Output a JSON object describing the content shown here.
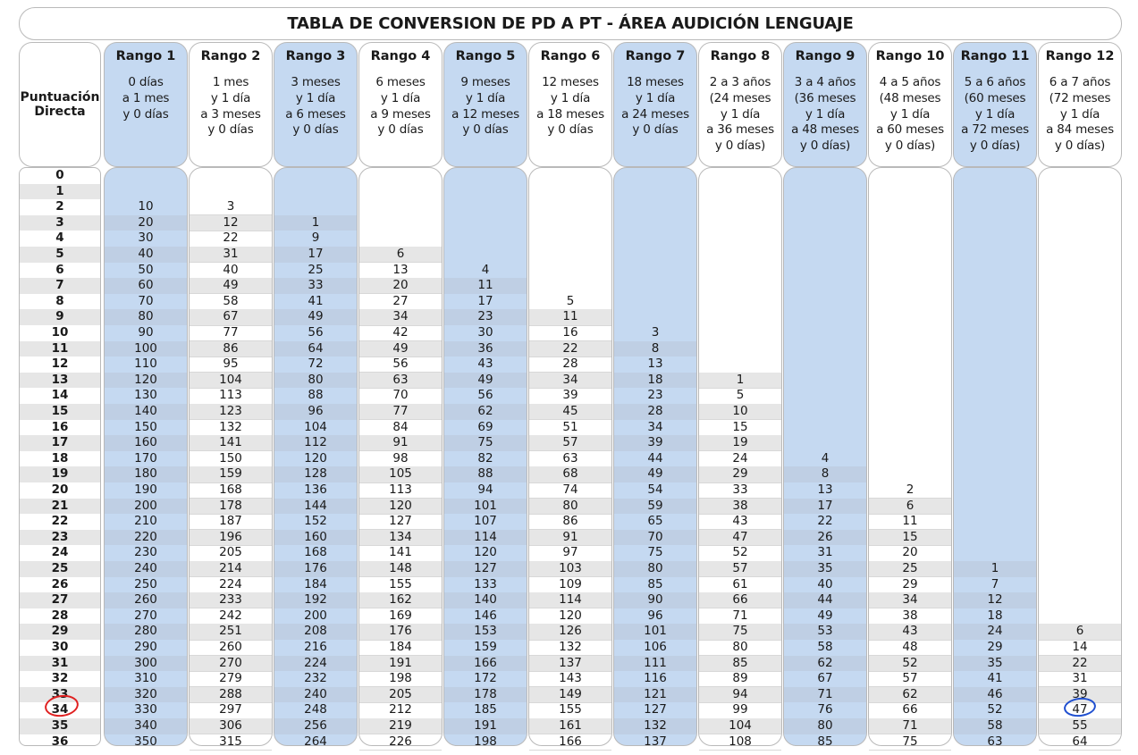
{
  "title": "TABLA DE CONVERSION DE PD A PT - ÁREA AUDICIÓN LENGUAJE",
  "pd_header": "Puntuación\nDirecta",
  "columns": [
    {
      "name": "Rango 1",
      "desc": "0 días\na 1 mes\ny 0 días",
      "blue": true
    },
    {
      "name": "Rango 2",
      "desc": "1 mes\ny 1 día\na 3 meses\ny 0 días",
      "blue": false
    },
    {
      "name": "Rango 3",
      "desc": "3 meses\ny 1 día\na 6 meses\ny 0 días",
      "blue": true
    },
    {
      "name": "Rango 4",
      "desc": "6 meses\ny 1 día\na 9 meses\ny 0 días",
      "blue": false
    },
    {
      "name": "Rango 5",
      "desc": "9 meses\ny 1 día\na 12 meses\ny 0 días",
      "blue": true
    },
    {
      "name": "Rango 6",
      "desc": "12 meses\ny 1 día\na 18 meses\ny 0 días",
      "blue": false
    },
    {
      "name": "Rango 7",
      "desc": "18 meses\ny 1 día\na 24 meses\ny 0 días",
      "blue": true
    },
    {
      "name": "Rango 8",
      "desc": "2 a 3 años\n(24 meses\ny 1 día\na 36 meses\ny 0 días)",
      "blue": false
    },
    {
      "name": "Rango 9",
      "desc": "3 a 4 años\n(36 meses\ny 1 día\na 48 meses\ny 0 días)",
      "blue": true
    },
    {
      "name": "Rango 10",
      "desc": "4 a 5 años\n(48 meses\ny 1 día\na 60 meses\ny 0 días)",
      "blue": false
    },
    {
      "name": "Rango 11",
      "desc": "5 a 6 años\n(60 meses\ny 1 día\na 72 meses\ny 0 días)",
      "blue": true
    },
    {
      "name": "Rango 12",
      "desc": "6 a 7 años\n(72 meses\ny 1 día\na 84 meses\ny 0 días)",
      "blue": false
    }
  ],
  "rows": [
    {
      "pd": "0",
      "values": [
        "",
        "",
        "",
        "",
        "",
        "",
        "",
        "",
        "",
        "",
        "",
        ""
      ]
    },
    {
      "pd": "1",
      "values": [
        "",
        "",
        "",
        "",
        "",
        "",
        "",
        "",
        "",
        "",
        "",
        ""
      ]
    },
    {
      "pd": "2",
      "values": [
        "10",
        "3",
        "",
        "",
        "",
        "",
        "",
        "",
        "",
        "",
        "",
        ""
      ]
    },
    {
      "pd": "3",
      "values": [
        "20",
        "12",
        "1",
        "",
        "",
        "",
        "",
        "",
        "",
        "",
        "",
        ""
      ]
    },
    {
      "pd": "4",
      "values": [
        "30",
        "22",
        "9",
        "",
        "",
        "",
        "",
        "",
        "",
        "",
        "",
        ""
      ]
    },
    {
      "pd": "5",
      "values": [
        "40",
        "31",
        "17",
        "6",
        "",
        "",
        "",
        "",
        "",
        "",
        "",
        ""
      ]
    },
    {
      "pd": "6",
      "values": [
        "50",
        "40",
        "25",
        "13",
        "4",
        "",
        "",
        "",
        "",
        "",
        "",
        ""
      ]
    },
    {
      "pd": "7",
      "values": [
        "60",
        "49",
        "33",
        "20",
        "11",
        "",
        "",
        "",
        "",
        "",
        "",
        ""
      ]
    },
    {
      "pd": "8",
      "values": [
        "70",
        "58",
        "41",
        "27",
        "17",
        "5",
        "",
        "",
        "",
        "",
        "",
        ""
      ]
    },
    {
      "pd": "9",
      "values": [
        "80",
        "67",
        "49",
        "34",
        "23",
        "11",
        "",
        "",
        "",
        "",
        "",
        ""
      ]
    },
    {
      "pd": "10",
      "values": [
        "90",
        "77",
        "56",
        "42",
        "30",
        "16",
        "3",
        "",
        "",
        "",
        "",
        ""
      ]
    },
    {
      "pd": "11",
      "values": [
        "100",
        "86",
        "64",
        "49",
        "36",
        "22",
        "8",
        "",
        "",
        "",
        "",
        ""
      ]
    },
    {
      "pd": "12",
      "values": [
        "110",
        "95",
        "72",
        "56",
        "43",
        "28",
        "13",
        "",
        "",
        "",
        "",
        ""
      ]
    },
    {
      "pd": "13",
      "values": [
        "120",
        "104",
        "80",
        "63",
        "49",
        "34",
        "18",
        "1",
        "",
        "",
        "",
        ""
      ]
    },
    {
      "pd": "14",
      "values": [
        "130",
        "113",
        "88",
        "70",
        "56",
        "39",
        "23",
        "5",
        "",
        "",
        "",
        ""
      ]
    },
    {
      "pd": "15",
      "values": [
        "140",
        "123",
        "96",
        "77",
        "62",
        "45",
        "28",
        "10",
        "",
        "",
        "",
        ""
      ]
    },
    {
      "pd": "16",
      "values": [
        "150",
        "132",
        "104",
        "84",
        "69",
        "51",
        "34",
        "15",
        "",
        "",
        "",
        ""
      ]
    },
    {
      "pd": "17",
      "values": [
        "160",
        "141",
        "112",
        "91",
        "75",
        "57",
        "39",
        "19",
        "",
        "",
        "",
        ""
      ]
    },
    {
      "pd": "18",
      "values": [
        "170",
        "150",
        "120",
        "98",
        "82",
        "63",
        "44",
        "24",
        "4",
        "",
        "",
        ""
      ]
    },
    {
      "pd": "19",
      "values": [
        "180",
        "159",
        "128",
        "105",
        "88",
        "68",
        "49",
        "29",
        "8",
        "",
        "",
        ""
      ]
    },
    {
      "pd": "20",
      "values": [
        "190",
        "168",
        "136",
        "113",
        "94",
        "74",
        "54",
        "33",
        "13",
        "2",
        "",
        ""
      ]
    },
    {
      "pd": "21",
      "values": [
        "200",
        "178",
        "144",
        "120",
        "101",
        "80",
        "59",
        "38",
        "17",
        "6",
        "",
        ""
      ]
    },
    {
      "pd": "22",
      "values": [
        "210",
        "187",
        "152",
        "127",
        "107",
        "86",
        "65",
        "43",
        "22",
        "11",
        "",
        ""
      ]
    },
    {
      "pd": "23",
      "values": [
        "220",
        "196",
        "160",
        "134",
        "114",
        "91",
        "70",
        "47",
        "26",
        "15",
        "",
        ""
      ]
    },
    {
      "pd": "24",
      "values": [
        "230",
        "205",
        "168",
        "141",
        "120",
        "97",
        "75",
        "52",
        "31",
        "20",
        "",
        ""
      ]
    },
    {
      "pd": "25",
      "values": [
        "240",
        "214",
        "176",
        "148",
        "127",
        "103",
        "80",
        "57",
        "35",
        "25",
        "1",
        ""
      ]
    },
    {
      "pd": "26",
      "values": [
        "250",
        "224",
        "184",
        "155",
        "133",
        "109",
        "85",
        "61",
        "40",
        "29",
        "7",
        ""
      ]
    },
    {
      "pd": "27",
      "values": [
        "260",
        "233",
        "192",
        "162",
        "140",
        "114",
        "90",
        "66",
        "44",
        "34",
        "12",
        ""
      ]
    },
    {
      "pd": "28",
      "values": [
        "270",
        "242",
        "200",
        "169",
        "146",
        "120",
        "96",
        "71",
        "49",
        "38",
        "18",
        ""
      ]
    },
    {
      "pd": "29",
      "values": [
        "280",
        "251",
        "208",
        "176",
        "153",
        "126",
        "101",
        "75",
        "53",
        "43",
        "24",
        "6"
      ]
    },
    {
      "pd": "30",
      "values": [
        "290",
        "260",
        "216",
        "184",
        "159",
        "132",
        "106",
        "80",
        "58",
        "48",
        "29",
        "14"
      ]
    },
    {
      "pd": "31",
      "values": [
        "300",
        "270",
        "224",
        "191",
        "166",
        "137",
        "111",
        "85",
        "62",
        "52",
        "35",
        "22"
      ]
    },
    {
      "pd": "32",
      "values": [
        "310",
        "279",
        "232",
        "198",
        "172",
        "143",
        "116",
        "89",
        "67",
        "57",
        "41",
        "31"
      ]
    },
    {
      "pd": "33",
      "values": [
        "320",
        "288",
        "240",
        "205",
        "178",
        "149",
        "121",
        "94",
        "71",
        "62",
        "46",
        "39"
      ]
    },
    {
      "pd": "34",
      "values": [
        "330",
        "297",
        "248",
        "212",
        "185",
        "155",
        "127",
        "99",
        "76",
        "66",
        "52",
        "47"
      ]
    },
    {
      "pd": "35",
      "values": [
        "340",
        "306",
        "256",
        "219",
        "191",
        "161",
        "132",
        "104",
        "80",
        "71",
        "58",
        "55"
      ]
    },
    {
      "pd": "36",
      "values": [
        "350",
        "315",
        "264",
        "226",
        "198",
        "166",
        "137",
        "108",
        "85",
        "75",
        "63",
        "64"
      ]
    }
  ],
  "annotations": [
    {
      "kind": "hand-drawn circle",
      "color": "#e02020",
      "target": "PD 34"
    },
    {
      "kind": "hand-drawn circle",
      "color": "#1f4fd0",
      "target": "Rango 12, PD 34"
    }
  ],
  "colors": {
    "blue_column": "#c5d9f1",
    "stripe": "#e6e6e6",
    "border": "#b9b9b9"
  }
}
